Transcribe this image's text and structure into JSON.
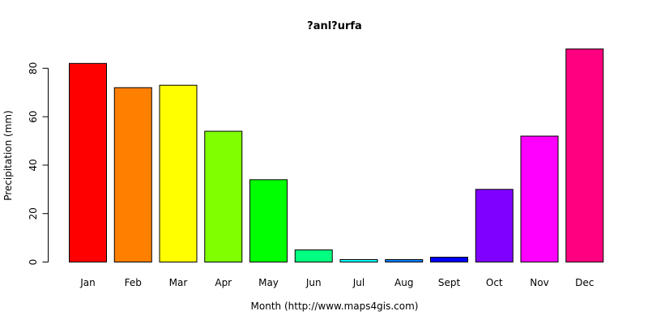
{
  "chart_data": {
    "type": "bar",
    "title": "?anl?urfa",
    "xlabel": "Month (http://www.maps4gis.com)",
    "ylabel": "Precipitation (mm)",
    "categories": [
      "Jan",
      "Feb",
      "Mar",
      "Apr",
      "May",
      "Jun",
      "Jul",
      "Aug",
      "Sept",
      "Oct",
      "Nov",
      "Dec"
    ],
    "values": [
      82,
      72,
      73,
      54,
      34,
      5,
      1,
      1,
      2,
      30,
      52,
      88
    ],
    "colors": [
      "#FF0000",
      "#FF8000",
      "#FFFF00",
      "#80FF00",
      "#00FF00",
      "#00FF80",
      "#00FFFF",
      "#0080FF",
      "#0000FF",
      "#8000FF",
      "#FF00FF",
      "#FF0080"
    ],
    "yticks": [
      0,
      20,
      40,
      60,
      80
    ],
    "ylim": [
      0,
      88
    ],
    "grid": false,
    "legend": "none"
  }
}
